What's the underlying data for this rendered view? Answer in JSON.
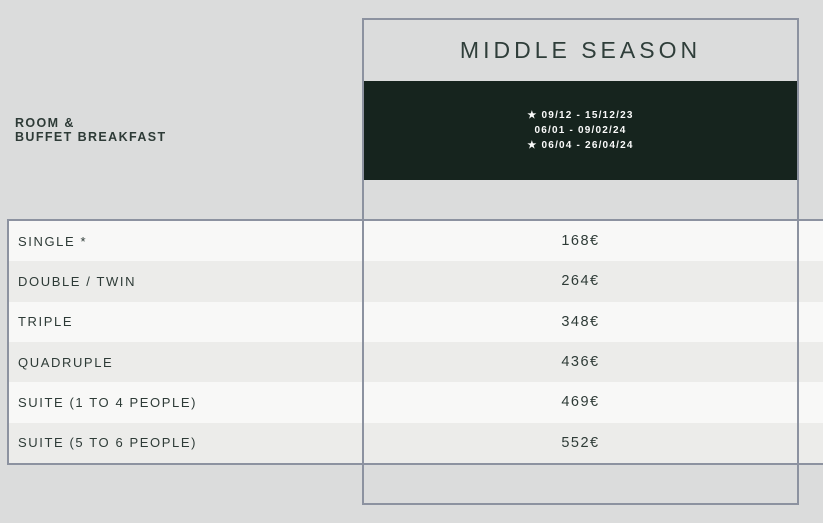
{
  "header": {
    "row_label_line1": "ROOM &",
    "row_label_line2": "BUFFET BREAKFAST"
  },
  "season": {
    "title": "MIDDLE SEASON",
    "dates": [
      "★ 09/12 - 15/12/23",
      "06/01 - 09/02/24",
      "★ 06/04 - 26/04/24"
    ]
  },
  "table": {
    "rows": [
      {
        "room": "SINGLE *",
        "price": "168€"
      },
      {
        "room": "DOUBLE / TWIN",
        "price": "264€"
      },
      {
        "room": "TRIPLE",
        "price": "348€"
      },
      {
        "room": "QUADRUPLE",
        "price": "436€"
      },
      {
        "room": "SUITE (1 TO 4 PEOPLE)",
        "price": "469€"
      },
      {
        "room": "SUITE (5 TO 6 PEOPLE)",
        "price": "552€"
      }
    ]
  },
  "colors": {
    "background": "#dbdcdc",
    "border": "#8c92a0",
    "band": "#16241e",
    "row_light": "#f8f8f7",
    "row_alt": "#ececea",
    "text": "#2e3b37",
    "title_text": "#2f3e3a",
    "date_text": "#fbfbfb"
  }
}
